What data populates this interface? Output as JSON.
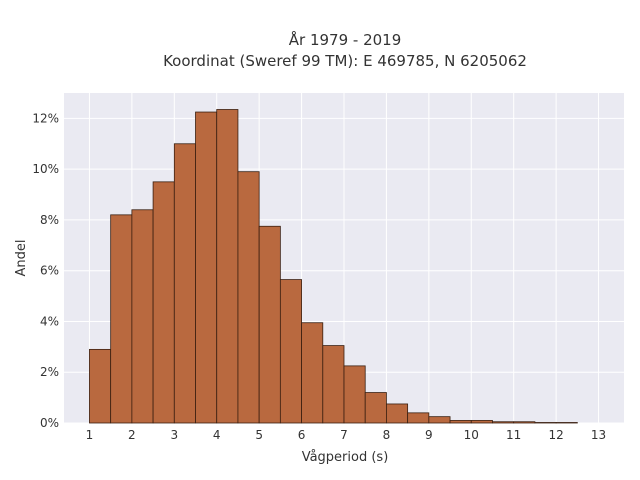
{
  "chart_data": {
    "type": "bar",
    "title_lines": [
      "År 1979 - 2019",
      "Koordinat (Sweref 99 TM): E 469785, N 6205062"
    ],
    "xlabel": "Vågperiod (s)",
    "ylabel": "Andel",
    "bin_width": 0.5,
    "bins": [
      {
        "start": 1.0,
        "value": 2.9
      },
      {
        "start": 1.5,
        "value": 8.2
      },
      {
        "start": 2.0,
        "value": 8.4
      },
      {
        "start": 2.5,
        "value": 9.5
      },
      {
        "start": 3.0,
        "value": 11.0
      },
      {
        "start": 3.5,
        "value": 12.25
      },
      {
        "start": 4.0,
        "value": 12.35
      },
      {
        "start": 4.5,
        "value": 9.9
      },
      {
        "start": 5.0,
        "value": 7.75
      },
      {
        "start": 5.5,
        "value": 5.65
      },
      {
        "start": 6.0,
        "value": 3.95
      },
      {
        "start": 6.5,
        "value": 3.05
      },
      {
        "start": 7.0,
        "value": 2.25
      },
      {
        "start": 7.5,
        "value": 1.2
      },
      {
        "start": 8.0,
        "value": 0.75
      },
      {
        "start": 8.5,
        "value": 0.4
      },
      {
        "start": 9.0,
        "value": 0.25
      },
      {
        "start": 9.5,
        "value": 0.1
      },
      {
        "start": 10.0,
        "value": 0.1
      },
      {
        "start": 10.5,
        "value": 0.05
      },
      {
        "start": 11.0,
        "value": 0.05
      },
      {
        "start": 11.5,
        "value": 0.02
      },
      {
        "start": 12.0,
        "value": 0.02
      }
    ],
    "xlim": [
      0.4,
      13.6
    ],
    "ylim": [
      0,
      13
    ],
    "xticks": [
      1,
      2,
      3,
      4,
      5,
      6,
      7,
      8,
      9,
      10,
      11,
      12,
      13
    ],
    "yticks": [
      0,
      2,
      4,
      6,
      8,
      10,
      12
    ],
    "ytick_labels": [
      "0%",
      "2%",
      "4%",
      "6%",
      "8%",
      "10%",
      "12%"
    ],
    "grid": true,
    "colors": {
      "bar_fill": "#b9693f",
      "bar_edge": "#3a1f10",
      "background": "#eaeaf2",
      "grid": "#ffffff"
    }
  }
}
